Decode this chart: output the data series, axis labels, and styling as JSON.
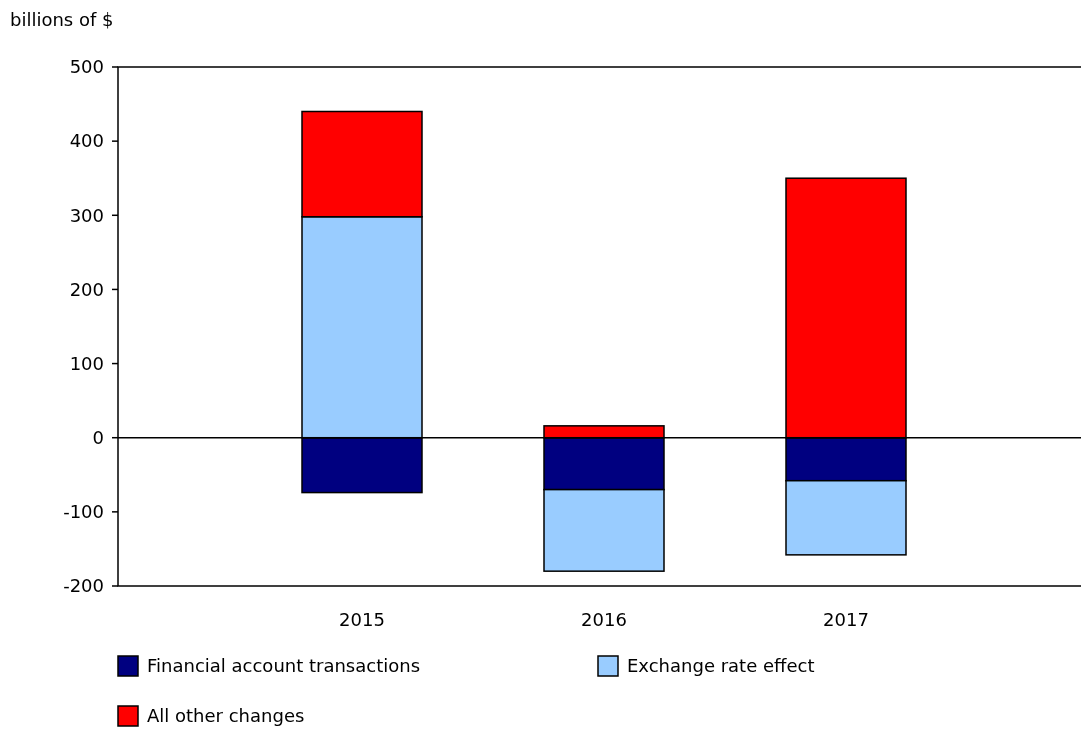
{
  "chart_data": {
    "type": "bar",
    "ylabel": "billions of $",
    "categories": [
      "2015",
      "2016",
      "2017"
    ],
    "stacked": true,
    "series": [
      {
        "name": "Financial account transactions",
        "color": "#000080",
        "values": [
          -74,
          -70,
          -58
        ]
      },
      {
        "name": "Exchange rate effect",
        "color": "#99ccff",
        "values": [
          298,
          -110,
          -100
        ]
      },
      {
        "name": "All other changes",
        "color": "#ff0000",
        "values": [
          142,
          16,
          350
        ]
      }
    ],
    "ylim": [
      -200,
      500
    ],
    "yticks": [
      -200,
      -100,
      0,
      100,
      200,
      300,
      400,
      500
    ],
    "legend": "bottom",
    "ref_lines": [
      {
        "axis": "y",
        "value": 0,
        "color": "#000000"
      }
    ]
  }
}
